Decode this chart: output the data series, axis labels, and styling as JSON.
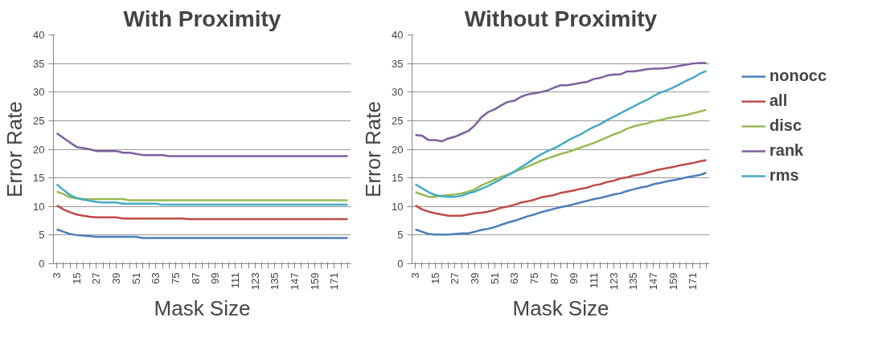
{
  "chart_data": [
    {
      "type": "line",
      "title": "With Proximity",
      "xlabel": "Mask Size",
      "ylabel": "Error Rate",
      "ylim": [
        0,
        40
      ],
      "yticks": [
        0,
        5,
        10,
        15,
        20,
        25,
        30,
        35,
        40
      ],
      "grid": "y",
      "marker": "none",
      "line_style": "solid",
      "categories": [
        "3",
        null,
        null,
        "15",
        null,
        null,
        "27",
        null,
        null,
        "39",
        null,
        null,
        "51",
        null,
        null,
        "63",
        null,
        null,
        "75",
        null,
        null,
        "87",
        null,
        null,
        "99",
        null,
        null,
        "111",
        null,
        null,
        "123",
        null,
        null,
        "135",
        null,
        null,
        "147",
        null,
        null,
        "159",
        null,
        null,
        "171",
        null,
        null
      ],
      "series": [
        {
          "color": "#4a7ebb",
          "values": [
            6.0,
            5.6,
            5.2,
            5.0,
            4.9,
            4.8,
            4.7,
            4.7,
            4.7,
            4.7,
            4.7,
            4.7,
            4.7,
            4.5,
            4.5,
            4.5,
            4.5,
            4.5,
            4.5,
            4.5,
            4.5,
            4.5,
            4.5,
            4.5,
            4.5,
            4.5,
            4.5,
            4.5,
            4.5,
            4.5,
            4.5,
            4.5,
            4.5,
            4.5,
            4.5,
            4.5,
            4.5,
            4.5,
            4.5,
            4.5,
            4.5,
            4.5,
            4.5,
            4.5,
            4.5
          ]
        },
        {
          "color": "#be4b48",
          "values": [
            10.2,
            9.5,
            9.0,
            8.6,
            8.4,
            8.2,
            8.1,
            8.1,
            8.1,
            8.1,
            7.9,
            7.9,
            7.9,
            7.9,
            7.9,
            7.9,
            7.9,
            7.9,
            7.9,
            7.9,
            7.8,
            7.8,
            7.8,
            7.8,
            7.8,
            7.8,
            7.8,
            7.8,
            7.8,
            7.8,
            7.8,
            7.8,
            7.8,
            7.8,
            7.8,
            7.8,
            7.8,
            7.8,
            7.8,
            7.8,
            7.8,
            7.8,
            7.8,
            7.8,
            7.8
          ]
        },
        {
          "color": "#98b954",
          "values": [
            12.6,
            12.2,
            11.6,
            11.4,
            11.3,
            11.3,
            11.3,
            11.3,
            11.3,
            11.3,
            11.3,
            11.1,
            11.1,
            11.1,
            11.1,
            11.1,
            11.1,
            11.1,
            11.1,
            11.1,
            11.1,
            11.1,
            11.1,
            11.1,
            11.1,
            11.1,
            11.1,
            11.1,
            11.1,
            11.1,
            11.1,
            11.1,
            11.1,
            11.1,
            11.1,
            11.1,
            11.1,
            11.1,
            11.1,
            11.1,
            11.1,
            11.1,
            11.1,
            11.1,
            11.1
          ]
        },
        {
          "color": "#7d60a0",
          "values": [
            22.8,
            22.0,
            21.2,
            20.4,
            20.2,
            20.0,
            19.7,
            19.7,
            19.7,
            19.7,
            19.4,
            19.4,
            19.2,
            19.0,
            19.0,
            19.0,
            19.0,
            18.8,
            18.8,
            18.8,
            18.8,
            18.8,
            18.8,
            18.8,
            18.8,
            18.8,
            18.8,
            18.8,
            18.8,
            18.8,
            18.8,
            18.8,
            18.8,
            18.8,
            18.8,
            18.8,
            18.8,
            18.8,
            18.8,
            18.8,
            18.8,
            18.8,
            18.8,
            18.8,
            18.8
          ]
        },
        {
          "color": "#46aac5",
          "values": [
            13.9,
            12.9,
            12.0,
            11.5,
            11.2,
            11.0,
            10.8,
            10.7,
            10.7,
            10.7,
            10.5,
            10.5,
            10.5,
            10.5,
            10.5,
            10.5,
            10.3,
            10.3,
            10.3,
            10.3,
            10.3,
            10.3,
            10.3,
            10.3,
            10.3,
            10.3,
            10.3,
            10.3,
            10.3,
            10.3,
            10.3,
            10.3,
            10.3,
            10.3,
            10.3,
            10.3,
            10.3,
            10.3,
            10.3,
            10.3,
            10.3,
            10.3,
            10.3,
            10.3,
            10.3
          ]
        }
      ]
    },
    {
      "type": "line",
      "title": "Without Proximity",
      "xlabel": "Mask Size",
      "ylabel": "Error Rate",
      "ylim": [
        0,
        40
      ],
      "yticks": [
        0,
        5,
        10,
        15,
        20,
        25,
        30,
        35,
        40
      ],
      "grid": "y",
      "legend": "right",
      "marker": "none",
      "line_style": "solid",
      "categories": [
        "3",
        null,
        null,
        "15",
        null,
        null,
        "27",
        null,
        null,
        "39",
        null,
        null,
        "51",
        null,
        null,
        "63",
        null,
        null,
        "75",
        null,
        null,
        "87",
        null,
        null,
        "99",
        null,
        null,
        "111",
        null,
        null,
        "123",
        null,
        null,
        "135",
        null,
        null,
        "147",
        null,
        null,
        "159",
        null,
        null,
        "171",
        null,
        null
      ],
      "series": [
        {
          "name": "nonocc",
          "color": "#4a7ebb",
          "values": [
            6.0,
            5.6,
            5.2,
            5.1,
            5.1,
            5.1,
            5.2,
            5.3,
            5.3,
            5.6,
            5.9,
            6.1,
            6.4,
            6.8,
            7.2,
            7.5,
            7.9,
            8.3,
            8.6,
            9.0,
            9.3,
            9.6,
            9.9,
            10.1,
            10.4,
            10.7,
            11.0,
            11.3,
            11.5,
            11.8,
            12.1,
            12.3,
            12.7,
            13.0,
            13.3,
            13.5,
            13.9,
            14.1,
            14.4,
            14.6,
            14.8,
            15.1,
            15.3,
            15.5,
            15.9
          ]
        },
        {
          "name": "all",
          "color": "#be4b48",
          "values": [
            10.2,
            9.5,
            9.1,
            8.8,
            8.6,
            8.4,
            8.4,
            8.4,
            8.6,
            8.8,
            8.9,
            9.1,
            9.4,
            9.8,
            10.0,
            10.3,
            10.7,
            10.9,
            11.2,
            11.6,
            11.8,
            12.0,
            12.4,
            12.6,
            12.8,
            13.1,
            13.3,
            13.7,
            13.9,
            14.3,
            14.5,
            14.9,
            15.1,
            15.4,
            15.6,
            15.9,
            16.2,
            16.5,
            16.7,
            16.9,
            17.2,
            17.4,
            17.6,
            17.9,
            18.1
          ]
        },
        {
          "name": "disc",
          "color": "#98b954",
          "values": [
            12.5,
            12.1,
            11.7,
            11.7,
            11.9,
            12.0,
            12.1,
            12.3,
            12.6,
            13.0,
            13.7,
            14.2,
            14.7,
            15.2,
            15.6,
            16.1,
            16.5,
            17.0,
            17.5,
            18.0,
            18.4,
            18.8,
            19.2,
            19.5,
            19.9,
            20.3,
            20.7,
            21.1,
            21.6,
            22.1,
            22.6,
            23.0,
            23.6,
            24.0,
            24.3,
            24.5,
            24.9,
            25.1,
            25.4,
            25.6,
            25.8,
            26.0,
            26.3,
            26.6,
            26.9
          ]
        },
        {
          "name": "rank",
          "color": "#7d60a0",
          "values": [
            22.5,
            22.4,
            21.6,
            21.6,
            21.4,
            21.9,
            22.2,
            22.7,
            23.2,
            24.2,
            25.6,
            26.5,
            27.0,
            27.7,
            28.3,
            28.5,
            29.2,
            29.6,
            29.8,
            30.0,
            30.3,
            30.8,
            31.2,
            31.2,
            31.4,
            31.6,
            31.8,
            32.3,
            32.5,
            32.9,
            33.1,
            33.1,
            33.6,
            33.6,
            33.8,
            34.0,
            34.1,
            34.1,
            34.2,
            34.4,
            34.6,
            34.8,
            35.0,
            35.1,
            35.1
          ]
        },
        {
          "name": "rms",
          "color": "#46aac5",
          "values": [
            13.9,
            13.2,
            12.5,
            12.0,
            11.8,
            11.7,
            11.7,
            11.9,
            12.3,
            12.6,
            13.1,
            13.6,
            14.2,
            14.8,
            15.5,
            16.1,
            16.9,
            17.6,
            18.4,
            19.1,
            19.7,
            20.2,
            20.8,
            21.5,
            22.1,
            22.6,
            23.3,
            23.9,
            24.4,
            25.1,
            25.7,
            26.3,
            26.9,
            27.5,
            28.1,
            28.6,
            29.3,
            29.9,
            30.3,
            30.8,
            31.4,
            32.0,
            32.5,
            33.2,
            33.7
          ]
        }
      ]
    }
  ]
}
